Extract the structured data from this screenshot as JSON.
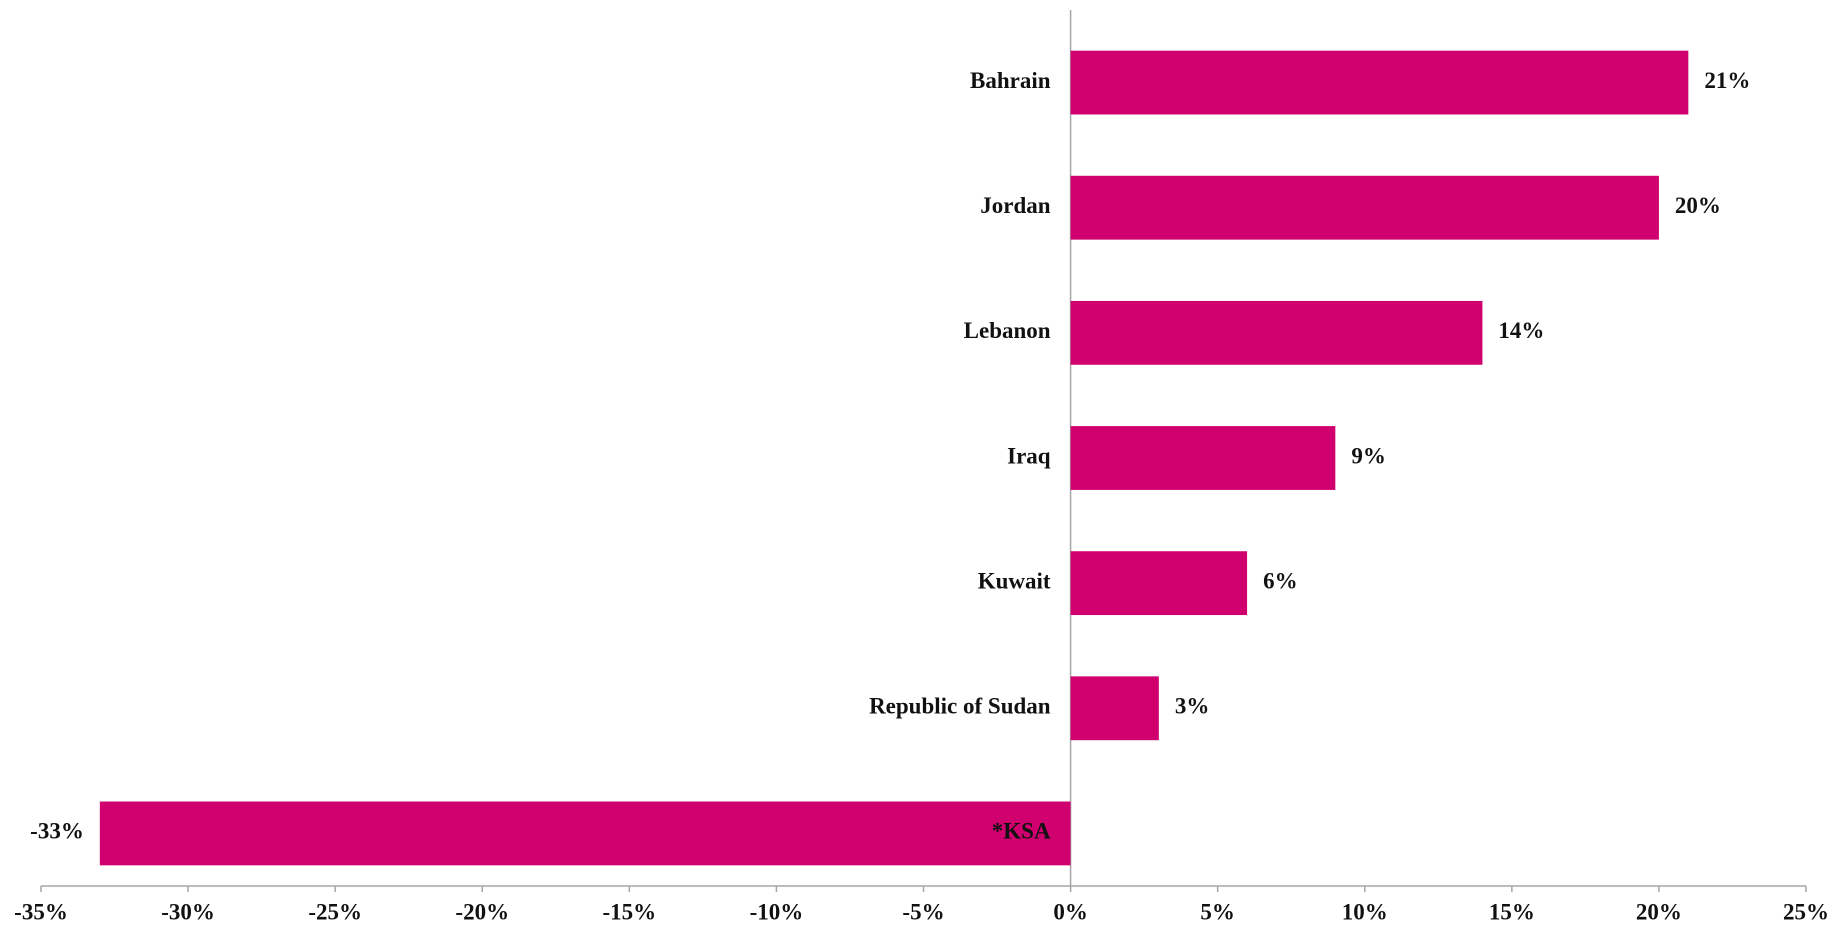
{
  "chart_data": {
    "type": "bar",
    "orientation": "horizontal",
    "categories": [
      "Bahrain",
      "Jordan",
      "Lebanon",
      "Iraq",
      "Kuwait",
      "Republic of  Sudan",
      "*KSA"
    ],
    "values": [
      21,
      20,
      14,
      9,
      6,
      3,
      -33
    ],
    "value_labels": [
      "21%",
      "20%",
      "14%",
      "9%",
      "6%",
      "3%",
      "-33%"
    ],
    "color": "#d0006f",
    "xlim": [
      -35,
      25
    ],
    "xticks": [
      {
        "value": -35,
        "label": "-35%"
      },
      {
        "value": -30,
        "label": "-30%"
      },
      {
        "value": -25,
        "label": "-25%"
      },
      {
        "value": -20,
        "label": "-20%"
      },
      {
        "value": -15,
        "label": "-15%"
      },
      {
        "value": -10,
        "label": "-10%"
      },
      {
        "value": -5,
        "label": "-5%"
      },
      {
        "value": 0,
        "label": "0%"
      },
      {
        "value": 5,
        "label": "5%"
      },
      {
        "value": 10,
        "label": "10%"
      },
      {
        "value": 15,
        "label": "15%"
      },
      {
        "value": 20,
        "label": "20%"
      },
      {
        "value": 25,
        "label": "25%"
      }
    ],
    "grid": false
  }
}
